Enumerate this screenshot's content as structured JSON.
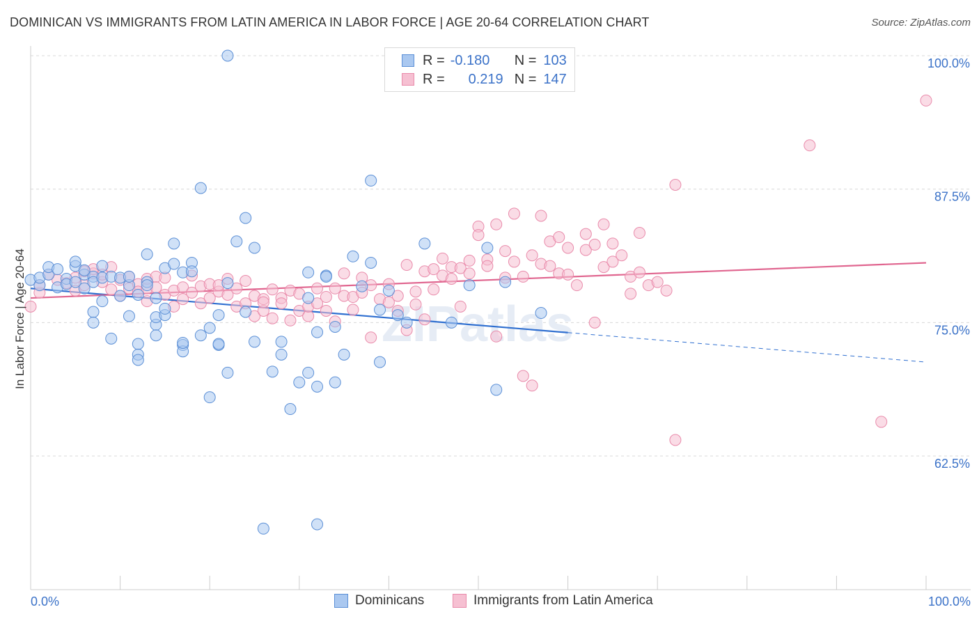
{
  "title": "DOMINICAN VS IMMIGRANTS FROM LATIN AMERICA IN LABOR FORCE | AGE 20-64 CORRELATION CHART",
  "source": "Source: ZipAtlas.com",
  "legend": {
    "r_label": "R =",
    "n_label": "N =",
    "series1": {
      "r": "-0.180",
      "n": "103"
    },
    "series2": {
      "r": "0.219",
      "n": "147"
    }
  },
  "bottom_legend": {
    "series1": "Dominicans",
    "series2": "Immigrants from Latin America"
  },
  "colors": {
    "blue_fill": "#aac8f0",
    "blue_stroke": "#5b8fd6",
    "blue_line": "#2f6fd0",
    "pink_fill": "#f6c0d2",
    "pink_stroke": "#e98aaa",
    "pink_line": "#e0658f",
    "tick_text": "#3b72c8"
  },
  "chart_data": {
    "type": "scatter",
    "title": "DOMINICAN VS IMMIGRANTS FROM LATIN AMERICA IN LABOR FORCE | AGE 20-64 CORRELATION CHART",
    "xlabel": "",
    "ylabel": "In Labor Force | Age 20-64",
    "xlim": [
      0,
      100
    ],
    "ylim": [
      50,
      102.5
    ],
    "x_tick_labels": [
      "0.0%",
      "100.0%"
    ],
    "y_ticks": [
      62.5,
      75.0,
      87.5,
      100.0
    ],
    "y_tick_labels": [
      "62.5%",
      "75.0%",
      "87.5%",
      "100.0%"
    ],
    "grid": "horizontal dashed",
    "watermark": "ZIPatlas",
    "series": [
      {
        "name": "Dominicans",
        "r": -0.18,
        "n": 103,
        "trend": {
          "x0": 0,
          "y0": 78.2,
          "x1": 100,
          "y1": 71.3,
          "solid_until": 60
        },
        "points": [
          [
            0,
            79
          ],
          [
            1,
            78.5
          ],
          [
            1,
            79.2
          ],
          [
            2,
            79.5
          ],
          [
            2,
            80.2
          ],
          [
            3,
            78.3
          ],
          [
            3,
            80
          ],
          [
            4,
            79.1
          ],
          [
            4,
            78.6
          ],
          [
            5,
            80.3
          ],
          [
            5,
            78.8
          ],
          [
            5,
            80.7
          ],
          [
            6,
            79.5
          ],
          [
            6,
            78.2
          ],
          [
            6,
            79.9
          ],
          [
            7,
            79.3
          ],
          [
            7,
            78.8
          ],
          [
            7,
            76
          ],
          [
            7,
            75
          ],
          [
            8,
            80.3
          ],
          [
            8,
            77
          ],
          [
            8,
            79.2
          ],
          [
            9,
            73.5
          ],
          [
            9,
            79.3
          ],
          [
            10,
            77.5
          ],
          [
            10,
            79.2
          ],
          [
            11,
            78.5
          ],
          [
            11,
            79.3
          ],
          [
            11,
            75.6
          ],
          [
            12,
            77.6
          ],
          [
            12,
            73
          ],
          [
            12,
            72
          ],
          [
            12,
            71.5
          ],
          [
            13,
            78.8
          ],
          [
            13,
            81.4
          ],
          [
            13,
            78.5
          ],
          [
            14,
            74.8
          ],
          [
            14,
            75.5
          ],
          [
            14,
            77.3
          ],
          [
            14,
            73.8
          ],
          [
            15,
            75.7
          ],
          [
            15,
            76.3
          ],
          [
            15,
            80.1
          ],
          [
            16,
            82.4
          ],
          [
            16,
            80.5
          ],
          [
            17,
            79.7
          ],
          [
            17,
            72.9
          ],
          [
            17,
            72.3
          ],
          [
            17,
            73.1
          ],
          [
            18,
            80.6
          ],
          [
            18,
            79.8
          ],
          [
            19,
            73.8
          ],
          [
            19,
            87.6
          ],
          [
            20,
            74.5
          ],
          [
            20,
            68
          ],
          [
            21,
            72.9
          ],
          [
            21,
            75.7
          ],
          [
            21,
            73
          ],
          [
            22,
            78.7
          ],
          [
            22,
            70.3
          ],
          [
            22,
            100
          ],
          [
            23,
            82.6
          ],
          [
            24,
            76
          ],
          [
            24,
            84.8
          ],
          [
            25,
            82
          ],
          [
            25,
            73.2
          ],
          [
            26,
            55.7
          ],
          [
            27,
            70.4
          ],
          [
            28,
            72
          ],
          [
            28,
            73.2
          ],
          [
            29,
            66.9
          ],
          [
            30,
            69.4
          ],
          [
            31,
            77.3
          ],
          [
            31,
            79.7
          ],
          [
            31,
            70.3
          ],
          [
            32,
            69
          ],
          [
            32,
            74.1
          ],
          [
            32,
            56.1
          ],
          [
            33,
            79.4
          ],
          [
            33,
            79.3
          ],
          [
            34,
            74.6
          ],
          [
            34,
            69.4
          ],
          [
            35,
            72
          ],
          [
            36,
            81.2
          ],
          [
            37,
            78.4
          ],
          [
            38,
            88.3
          ],
          [
            38,
            80.6
          ],
          [
            39,
            71.3
          ],
          [
            39,
            76.2
          ],
          [
            40,
            78
          ],
          [
            41,
            75.7
          ],
          [
            42,
            75
          ],
          [
            44,
            82.4
          ],
          [
            47,
            75
          ],
          [
            49,
            78.5
          ],
          [
            51,
            82
          ],
          [
            52,
            68.7
          ],
          [
            53,
            78.8
          ],
          [
            57,
            75.9
          ]
        ]
      },
      {
        "name": "Immigrants from Latin America",
        "r": 0.219,
        "n": 147,
        "trend": {
          "x0": 0,
          "y0": 77.3,
          "x1": 100,
          "y1": 80.6
        },
        "points": [
          [
            0,
            76.5
          ],
          [
            1,
            77.8
          ],
          [
            1,
            78.5
          ],
          [
            2,
            79.5
          ],
          [
            3,
            79
          ],
          [
            4,
            78.7
          ],
          [
            5,
            78
          ],
          [
            5,
            79.2
          ],
          [
            6,
            79.8
          ],
          [
            6,
            78.5
          ],
          [
            7,
            79.6
          ],
          [
            7,
            80
          ],
          [
            8,
            78.8
          ],
          [
            8,
            79.5
          ],
          [
            9,
            78.1
          ],
          [
            9,
            80.2
          ],
          [
            10,
            79
          ],
          [
            10,
            77.5
          ],
          [
            11,
            79.3
          ],
          [
            11,
            78.2
          ],
          [
            12,
            78.6
          ],
          [
            12,
            77.9
          ],
          [
            13,
            78.2
          ],
          [
            13,
            79.1
          ],
          [
            13,
            77
          ],
          [
            14,
            79.3
          ],
          [
            14,
            78.3
          ],
          [
            15,
            77.6
          ],
          [
            15,
            79.2
          ],
          [
            16,
            78
          ],
          [
            16,
            76.5
          ],
          [
            17,
            78.3
          ],
          [
            17,
            77.2
          ],
          [
            18,
            79.4
          ],
          [
            18,
            77.8
          ],
          [
            19,
            78.4
          ],
          [
            19,
            76.8
          ],
          [
            20,
            78.6
          ],
          [
            20,
            77.3
          ],
          [
            21,
            77.9
          ],
          [
            21,
            78.5
          ],
          [
            22,
            79.1
          ],
          [
            22,
            77.6
          ],
          [
            23,
            78.2
          ],
          [
            23,
            76.5
          ],
          [
            24,
            78.9
          ],
          [
            24,
            76.8
          ],
          [
            25,
            77.5
          ],
          [
            25,
            75.6
          ],
          [
            26,
            77.2
          ],
          [
            26,
            76.1
          ],
          [
            26,
            76.9
          ],
          [
            27,
            78.1
          ],
          [
            27,
            75.4
          ],
          [
            28,
            77.3
          ],
          [
            28,
            76.8
          ],
          [
            29,
            78
          ],
          [
            29,
            75.2
          ],
          [
            30,
            76.1
          ],
          [
            30,
            77.7
          ],
          [
            31,
            75.6
          ],
          [
            31,
            76.5
          ],
          [
            32,
            76.8
          ],
          [
            32,
            78.2
          ],
          [
            33,
            77.4
          ],
          [
            33,
            76.1
          ],
          [
            34,
            78.2
          ],
          [
            34,
            75.1
          ],
          [
            35,
            79.6
          ],
          [
            35,
            77.5
          ],
          [
            36,
            76.2
          ],
          [
            36,
            77.4
          ],
          [
            37,
            79.2
          ],
          [
            37,
            77.8
          ],
          [
            38,
            73.6
          ],
          [
            38,
            78.5
          ],
          [
            39,
            77.2
          ],
          [
            40,
            78.6
          ],
          [
            40,
            76.9
          ],
          [
            41,
            76.1
          ],
          [
            41,
            77.5
          ],
          [
            42,
            80.4
          ],
          [
            42,
            74.3
          ],
          [
            43,
            77.9
          ],
          [
            43,
            76.7
          ],
          [
            44,
            75.3
          ],
          [
            44,
            79.8
          ],
          [
            45,
            78.1
          ],
          [
            45,
            80
          ],
          [
            46,
            79.4
          ],
          [
            46,
            81
          ],
          [
            47,
            80.2
          ],
          [
            47,
            79.1
          ],
          [
            48,
            76.5
          ],
          [
            48,
            80.1
          ],
          [
            49,
            80.8
          ],
          [
            49,
            79.6
          ],
          [
            50,
            84
          ],
          [
            50,
            83.2
          ],
          [
            51,
            80.9
          ],
          [
            51,
            80.3
          ],
          [
            52,
            84.2
          ],
          [
            52,
            73.7
          ],
          [
            53,
            81.7
          ],
          [
            53,
            79.2
          ],
          [
            54,
            85.2
          ],
          [
            54,
            80.7
          ],
          [
            55,
            70
          ],
          [
            55,
            79.3
          ],
          [
            56,
            81.3
          ],
          [
            56,
            69.1
          ],
          [
            57,
            85
          ],
          [
            57,
            80.5
          ],
          [
            58,
            80.3
          ],
          [
            58,
            82.6
          ],
          [
            59,
            79.6
          ],
          [
            59,
            83
          ],
          [
            60,
            82
          ],
          [
            60,
            79.5
          ],
          [
            61,
            78.5
          ],
          [
            62,
            81.8
          ],
          [
            62,
            83.3
          ],
          [
            63,
            82.3
          ],
          [
            63,
            75
          ],
          [
            64,
            84.2
          ],
          [
            64,
            80.2
          ],
          [
            65,
            82.4
          ],
          [
            65,
            80.7
          ],
          [
            66,
            81.3
          ],
          [
            67,
            77.7
          ],
          [
            67,
            79.3
          ],
          [
            68,
            83.4
          ],
          [
            68,
            79.7
          ],
          [
            69,
            78.5
          ],
          [
            70,
            78.8
          ],
          [
            71,
            78
          ],
          [
            72,
            64
          ],
          [
            72,
            87.9
          ],
          [
            87,
            91.6
          ],
          [
            95,
            65.7
          ],
          [
            100,
            95.8
          ]
        ]
      }
    ]
  }
}
